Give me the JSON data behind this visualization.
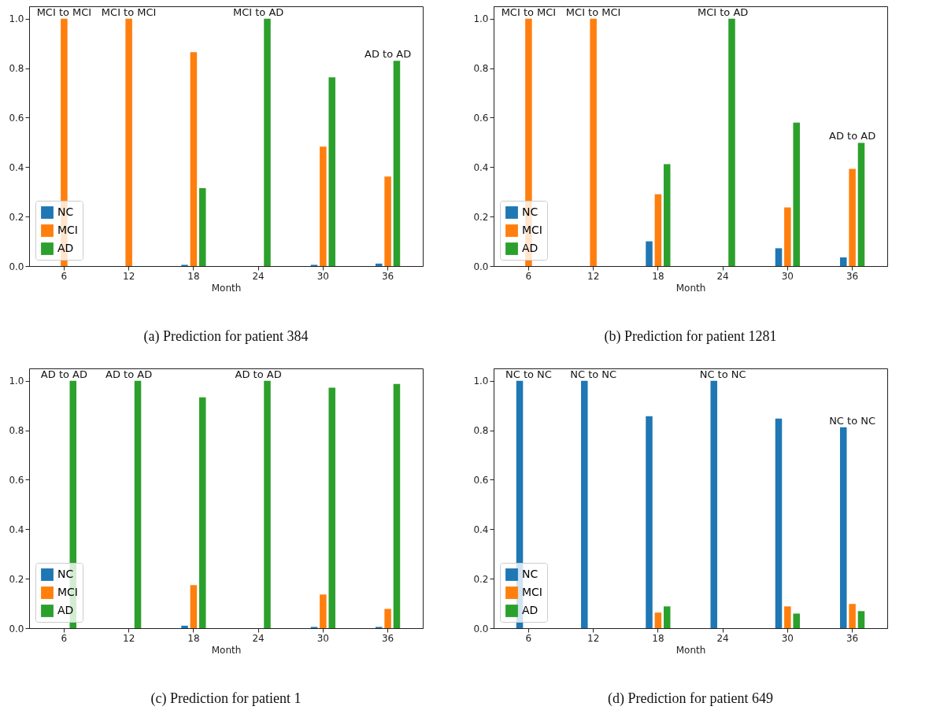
{
  "chart_data": [
    {
      "type": "bar",
      "title": "(a) Prediction for patient 384",
      "xlabel": "Month",
      "categories": [
        "6",
        "12",
        "18",
        "24",
        "30",
        "36"
      ],
      "series": [
        {
          "name": "NC",
          "color": "#1f77b4",
          "values": [
            0,
            0,
            0.005,
            0,
            0.005,
            0.01
          ]
        },
        {
          "name": "MCI",
          "color": "#ff7f0e",
          "values": [
            1,
            1,
            0.865,
            0,
            0.483,
            0.362
          ]
        },
        {
          "name": "AD",
          "color": "#2ca02c",
          "values": [
            0,
            0,
            0.315,
            1,
            0.763,
            0.83
          ]
        }
      ],
      "ylim": [
        0,
        1.05
      ],
      "yticks": [
        {
          "value": 0,
          "label": "0.0"
        },
        {
          "value": 0.2,
          "label": "0.2"
        },
        {
          "value": 0.4,
          "label": "0.4"
        },
        {
          "value": 0.6,
          "label": "0.6"
        },
        {
          "value": 0.8,
          "label": "0.8"
        },
        {
          "value": 1,
          "label": "1.0"
        }
      ],
      "annotations": [
        "MCI to MCI",
        "MCI to MCI",
        "MCI to AD",
        "AD to AD"
      ],
      "legend": "bottom left",
      "grid": false
    },
    {
      "type": "bar",
      "title": "(b) Prediction for patient 1281",
      "xlabel": "Month",
      "categories": [
        "6",
        "12",
        "18",
        "24",
        "30",
        "36"
      ],
      "series": [
        {
          "name": "NC",
          "color": "#1f77b4",
          "values": [
            0,
            0,
            0.1,
            0,
            0.072,
            0.035
          ]
        },
        {
          "name": "MCI",
          "color": "#ff7f0e",
          "values": [
            1,
            1,
            0.29,
            0,
            0.237,
            0.393
          ]
        },
        {
          "name": "AD",
          "color": "#2ca02c",
          "values": [
            0,
            0,
            0.412,
            1,
            0.58,
            0.498
          ]
        }
      ],
      "ylim": [
        0,
        1.05
      ],
      "yticks": [
        {
          "value": 0,
          "label": "0.0"
        },
        {
          "value": 0.2,
          "label": "0.2"
        },
        {
          "value": 0.4,
          "label": "0.4"
        },
        {
          "value": 0.6,
          "label": "0.6"
        },
        {
          "value": 0.8,
          "label": "0.8"
        },
        {
          "value": 1,
          "label": "1.0"
        }
      ],
      "annotations": [
        "MCI to MCI",
        "MCI to MCI",
        "MCI to AD",
        "AD to AD"
      ],
      "legend": "bottom left",
      "grid": false
    },
    {
      "type": "bar",
      "title": "(c) Prediction for patient 1",
      "xlabel": "Month",
      "categories": [
        "6",
        "12",
        "18",
        "24",
        "30",
        "36"
      ],
      "series": [
        {
          "name": "NC",
          "color": "#1f77b4",
          "values": [
            0,
            0,
            0.01,
            0,
            0.005,
            0.005
          ]
        },
        {
          "name": "MCI",
          "color": "#ff7f0e",
          "values": [
            0,
            0,
            0.174,
            0,
            0.136,
            0.078
          ]
        },
        {
          "name": "AD",
          "color": "#2ca02c",
          "values": [
            1,
            1,
            0.933,
            1,
            0.972,
            0.987
          ]
        }
      ],
      "ylim": [
        0,
        1.05
      ],
      "yticks": [
        {
          "value": 0,
          "label": "0.0"
        },
        {
          "value": 0.2,
          "label": "0.2"
        },
        {
          "value": 0.4,
          "label": "0.4"
        },
        {
          "value": 0.6,
          "label": "0.6"
        },
        {
          "value": 0.8,
          "label": "0.8"
        },
        {
          "value": 1,
          "label": "1.0"
        }
      ],
      "annotations": [
        "AD to AD",
        "AD to AD",
        "AD to AD"
      ],
      "legend": "bottom left",
      "grid": false
    },
    {
      "type": "bar",
      "title": "(d) Prediction for patient 649",
      "xlabel": "Month",
      "categories": [
        "6",
        "12",
        "18",
        "24",
        "30",
        "36"
      ],
      "series": [
        {
          "name": "NC",
          "color": "#1f77b4",
          "values": [
            1,
            1,
            0.857,
            1,
            0.847,
            0.812
          ]
        },
        {
          "name": "MCI",
          "color": "#ff7f0e",
          "values": [
            0,
            0,
            0.063,
            0,
            0.088,
            0.098
          ]
        },
        {
          "name": "AD",
          "color": "#2ca02c",
          "values": [
            0,
            0,
            0.088,
            0,
            0.059,
            0.069
          ]
        }
      ],
      "ylim": [
        0,
        1.05
      ],
      "yticks": [
        {
          "value": 0,
          "label": "0.0"
        },
        {
          "value": 0.2,
          "label": "0.2"
        },
        {
          "value": 0.4,
          "label": "0.4"
        },
        {
          "value": 0.6,
          "label": "0.6"
        },
        {
          "value": 0.8,
          "label": "0.8"
        },
        {
          "value": 1,
          "label": "1.0"
        }
      ],
      "annotations": [
        "NC to NC",
        "NC to NC",
        "NC to NC",
        "NC to NC"
      ],
      "legend": "bottom left",
      "grid": false
    }
  ]
}
